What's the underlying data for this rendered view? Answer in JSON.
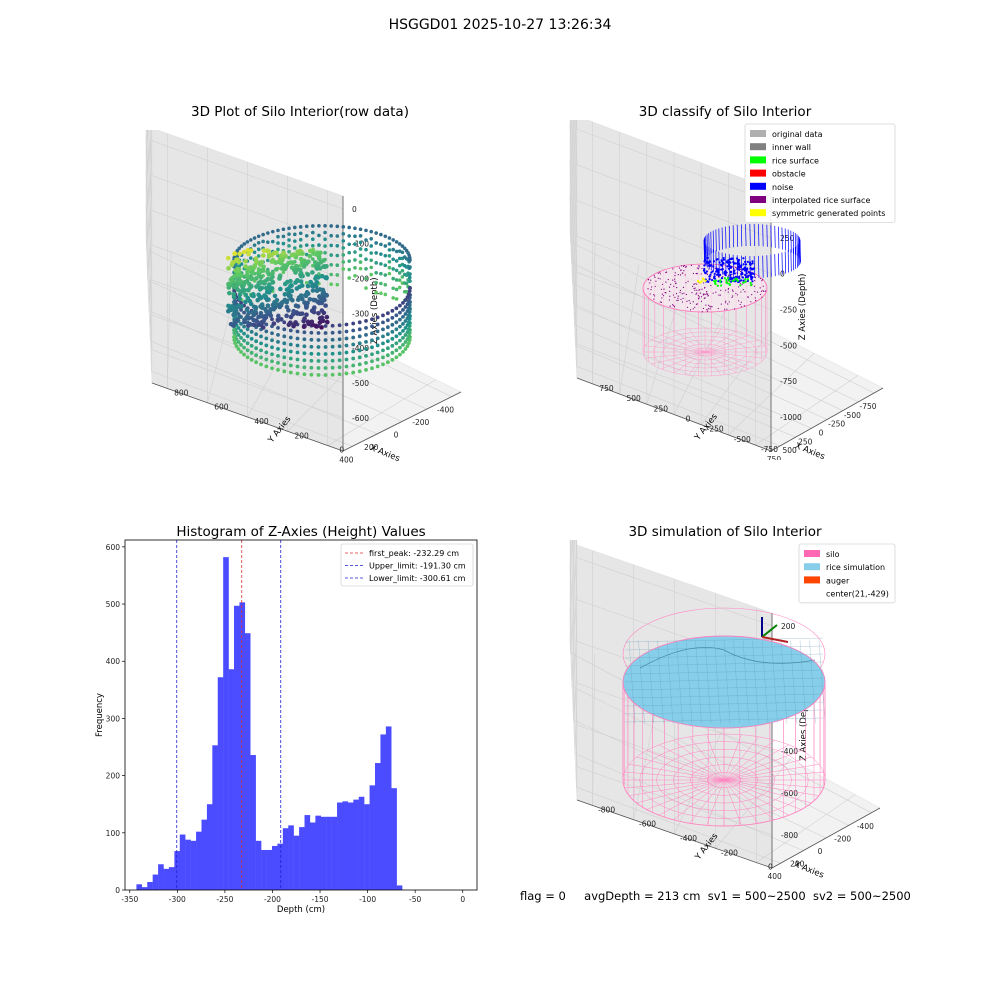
{
  "figure": {
    "title": "HSGGD01 2025-10-27 13:26:34",
    "status": {
      "flag": "flag = 0",
      "avg_depth": "avgDepth = 213 cm",
      "sv1": "sv1 = 500~2500",
      "sv2": "sv2 = 500~2500"
    }
  },
  "chart_data": [
    {
      "type": "scatter",
      "title": "3D Plot of Silo Interior(row data)",
      "xlabel": "X Axies",
      "ylabel": "Y Axies",
      "zlabel": "Z Axies (Depth)",
      "xticks": [
        "-400",
        "-200",
        "0",
        "200",
        "400"
      ],
      "yticks": [
        "0",
        "200",
        "400",
        "600",
        "800"
      ],
      "zticks": [
        "0",
        "-100",
        "-200",
        "-300",
        "-400",
        "-500",
        "-600"
      ],
      "colormap": "viridis"
    },
    {
      "type": "scatter",
      "title": "3D classify of Silo Interior",
      "xlabel": "X Axies",
      "ylabel": "Y Axies",
      "zlabel": "Z Axies (Depth)",
      "xticks": [
        "-750",
        "-500",
        "-250",
        "0",
        "250",
        "500",
        "750"
      ],
      "yticks": [
        "-750",
        "-500",
        "-250",
        "0",
        "250",
        "500",
        "750"
      ],
      "zticks": [
        "500",
        "250",
        "0",
        "-250",
        "-500",
        "-750",
        "-1000"
      ],
      "legend": [
        {
          "label": "original data",
          "color": "#b0b0b0"
        },
        {
          "label": "inner wall",
          "color": "#808080"
        },
        {
          "label": "rice surface",
          "color": "#00ff00"
        },
        {
          "label": "obstacle",
          "color": "#ff0000"
        },
        {
          "label": "noise",
          "color": "#0000ff"
        },
        {
          "label": "interpolated rice surface",
          "color": "#800080"
        },
        {
          "label": "symmetric generated points",
          "color": "#ffff00"
        }
      ],
      "legend_position": "upper-right"
    },
    {
      "type": "bar",
      "title": "Histogram of Z-Axies (Height) Values",
      "xlabel": "Depth (cm)",
      "ylabel": "Frequency",
      "xlim": [
        -355,
        15
      ],
      "ylim": [
        0,
        612
      ],
      "xticks": [
        -350,
        -300,
        -250,
        -200,
        -150,
        -100,
        -50,
        0
      ],
      "yticks": [
        0,
        100,
        200,
        300,
        400,
        500,
        600
      ],
      "bin_start": -343,
      "bin_width": 5.7,
      "values": [
        10,
        5,
        14,
        27,
        45,
        37,
        40,
        68,
        97,
        88,
        86,
        102,
        123,
        150,
        253,
        372,
        582,
        386,
        497,
        503,
        449,
        236,
        86,
        70,
        70,
        77,
        81,
        108,
        113,
        95,
        110,
        131,
        118,
        130,
        128,
        128,
        128,
        153,
        155,
        153,
        158,
        163,
        150,
        183,
        222,
        272,
        286,
        178,
        8
      ],
      "bar_color": "#4b4bff",
      "lines": [
        {
          "label": "first_peak: -232.29 cm",
          "x": -232.29,
          "color": "#e03030"
        },
        {
          "label": "Upper_limit: -191.30 cm",
          "x": -191.3,
          "color": "#2020d0"
        },
        {
          "label": "Lower_limit: -300.61 cm",
          "x": -300.61,
          "color": "#2020d0"
        }
      ],
      "legend_position": "upper-right"
    },
    {
      "type": "scatter",
      "title": "3D simulation of Silo Interior",
      "xlabel": "X Axies",
      "ylabel": "Y Axies",
      "zlabel": "Z Axies (Depth)",
      "xticks": [
        "-400",
        "-200",
        "0",
        "200",
        "400"
      ],
      "yticks": [
        "0",
        "-200",
        "-400",
        "-600",
        "-800"
      ],
      "zticks": [
        "200",
        "0",
        "-200",
        "-400",
        "-600",
        "-800"
      ],
      "legend": [
        {
          "label": "silo",
          "color": "#ff69b4"
        },
        {
          "label": "rice simulation",
          "color": "#87ceeb"
        },
        {
          "label": "auger",
          "color": "#ff4500"
        },
        {
          "label": "center(21,-429)",
          "color": ""
        }
      ],
      "legend_position": "upper-right"
    }
  ]
}
